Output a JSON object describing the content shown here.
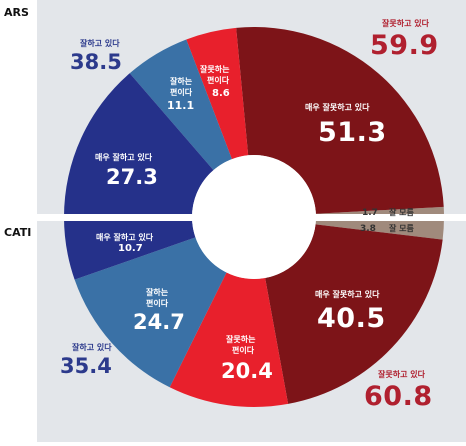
{
  "chart_data": [
    {
      "type": "pie",
      "title": "ARS",
      "slices": [
        {
          "label": "매우 잘못하고 있다",
          "value": 51.3,
          "color": "#7d1418"
        },
        {
          "label": "잘 모름",
          "value": 1.7,
          "color": "#a08a7c"
        },
        {
          "label": "매우 잘하고 있다",
          "value": 27.3,
          "color": "#25318a"
        },
        {
          "label": "잘하는 편이다",
          "value": 11.1,
          "color": "#3a71a6"
        },
        {
          "label": "잘못하는 편이다",
          "value": 8.6,
          "color": "#e8202c"
        }
      ],
      "totals": [
        {
          "label": "잘하고 있다",
          "value": "38.5",
          "color": "#2c3a8c"
        },
        {
          "label": "잘못하고 있다",
          "value": "59.9",
          "color": "#b0202f"
        }
      ]
    },
    {
      "type": "pie",
      "title": "CATI",
      "slices": [
        {
          "label": "잘 모름",
          "value": 3.8,
          "color": "#a08a7c"
        },
        {
          "label": "매우 잘못하고 있다",
          "value": 40.5,
          "color": "#7d1418"
        },
        {
          "label": "잘못하는 편이다",
          "value": 20.4,
          "color": "#e8202c"
        },
        {
          "label": "잘하는 편이다",
          "value": 24.7,
          "color": "#3a71a6"
        },
        {
          "label": "매우 잘하고 있다",
          "value": 10.7,
          "color": "#25318a"
        }
      ],
      "totals": [
        {
          "label": "잘하고 있다",
          "value": "35.4",
          "color": "#2c3a8c"
        },
        {
          "label": "잘못하고 있다",
          "value": "60.8",
          "color": "#b0202f"
        }
      ]
    }
  ],
  "labels": {
    "ars_title": "ARS",
    "cati_title": "CATI",
    "ars_good_total_label": "잘하고 있다",
    "ars_good_total_value": "38.5",
    "ars_bad_total_label": "잘못하고 있다",
    "ars_bad_total_value": "59.9",
    "ars_very_bad_label": "매우 잘못하고 있다",
    "ars_very_bad_value": "51.3",
    "ars_very_good_label": "매우 잘하고 있다",
    "ars_very_good_value": "27.3",
    "ars_good_line1": "잘하는",
    "ars_good_line2": "편이다",
    "ars_good_value": "11.1",
    "ars_bad_line1": "잘못하는",
    "ars_bad_line2": "편이다",
    "ars_bad_value": "8.6",
    "ars_unknown_value": "1.7",
    "ars_unknown_label": "잘 모름",
    "cati_unknown_value": "3.8",
    "cati_unknown_label": "잘 모름",
    "cati_very_good_label": "매우 잘하고 있다",
    "cati_very_good_value": "10.7",
    "cati_good_line1": "잘하는",
    "cati_good_line2": "편이다",
    "cati_good_value": "24.7",
    "cati_bad_line1": "잘못하는",
    "cati_bad_line2": "편이다",
    "cati_bad_value": "20.4",
    "cati_very_bad_label": "매우 잘못하고 있다",
    "cati_very_bad_value": "40.5",
    "cati_good_total_label": "잘하고 있다",
    "cati_good_total_value": "35.4",
    "cati_bad_total_label": "잘못하고 있다",
    "cati_bad_total_value": "60.8"
  },
  "colors": {
    "background_panel": "#e3e6ea",
    "center_hole": "#ffffff",
    "divider": "#ffffff"
  }
}
